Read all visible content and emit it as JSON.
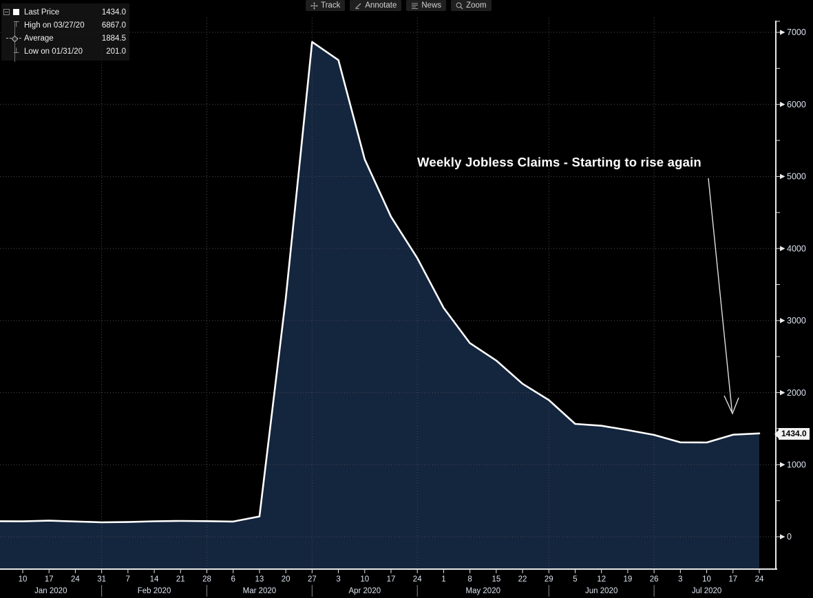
{
  "toolbar": {
    "items": [
      {
        "label": "Track",
        "icon": "track-crosshair-icon"
      },
      {
        "label": "Annotate",
        "icon": "annotate-pencil-icon"
      },
      {
        "label": "News",
        "icon": "news-lines-icon"
      },
      {
        "label": "Zoom",
        "icon": "zoom-magnifier-icon"
      }
    ]
  },
  "legend": {
    "rows": [
      {
        "icon": "last-price-swatch",
        "label": "Last Price",
        "value": "1434.0"
      },
      {
        "icon": "high-marker",
        "label": "High on 03/27/20",
        "value": "6867.0"
      },
      {
        "icon": "average-marker",
        "label": "Average",
        "value": "1884.5"
      },
      {
        "icon": "low-marker",
        "label": "Low on 01/31/20",
        "value": "201.0"
      }
    ]
  },
  "annotation": {
    "text": "Weekly Jobless Claims - Starting to rise again"
  },
  "last_price_tag": "1434.0",
  "chart_data": {
    "type": "area",
    "title": "Weekly Jobless Claims - Starting to rise again",
    "series": [
      {
        "name": "Last Price",
        "dates": [
          "01/10/20",
          "01/17/20",
          "01/24/20",
          "01/31/20",
          "02/07/20",
          "02/14/20",
          "02/21/20",
          "02/28/20",
          "03/06/20",
          "03/13/20",
          "03/20/20",
          "03/27/20",
          "04/03/20",
          "04/10/20",
          "04/17/20",
          "04/24/20",
          "05/01/20",
          "05/08/20",
          "05/15/20",
          "05/22/20",
          "05/29/20",
          "06/05/20",
          "06/12/20",
          "06/19/20",
          "06/26/20",
          "07/03/20",
          "07/10/20",
          "07/17/20",
          "07/24/20"
        ],
        "values": [
          214,
          223,
          212,
          201,
          204,
          215,
          220,
          217,
          211,
          282,
          3307,
          6867,
          6615,
          5237,
          4442,
          3867,
          3176,
          2687,
          2446,
          2123,
          1897,
          1566,
          1540,
          1480,
          1413,
          1310,
          1308,
          1416,
          1434
        ]
      }
    ],
    "left_edge_value": 216,
    "x_axis": {
      "tick_days": [
        "10",
        "17",
        "24",
        "31",
        "7",
        "14",
        "21",
        "28",
        "6",
        "13",
        "20",
        "27",
        "3",
        "10",
        "17",
        "24",
        "1",
        "8",
        "15",
        "22",
        "29",
        "5",
        "12",
        "19",
        "26",
        "3",
        "10",
        "17",
        "24"
      ],
      "month_labels": [
        "Jan 2020",
        "Feb 2020",
        "Mar 2020",
        "Apr 2020",
        "May 2020",
        "Jun 2020",
        "Jul 2020"
      ],
      "month_end_week_indices": [
        3,
        7,
        11,
        15,
        20,
        24
      ]
    },
    "y_axis": {
      "ticks": [
        0,
        1000,
        2000,
        3000,
        4000,
        5000,
        6000,
        7000
      ],
      "minor_step": 500,
      "ylim": [
        0,
        7000
      ]
    },
    "stats": {
      "last": 1434.0,
      "high": 6867.0,
      "high_date": "03/27/20",
      "average": 1884.5,
      "low": 201.0,
      "low_date": "01/31/20"
    },
    "grid": "dotted",
    "legend_position": "top-left",
    "colors": {
      "background": "#000000",
      "area_fill": "#14253e",
      "line": "#ffffff",
      "grid": "#4e4e4e",
      "axis": "#e9e9e9",
      "tick_label": "#dce3ef",
      "month_divider": "#8a8a8a",
      "annotation_text": "#ffffff",
      "tag_bg": "#f2f2f2",
      "tag_text": "#000000"
    }
  }
}
